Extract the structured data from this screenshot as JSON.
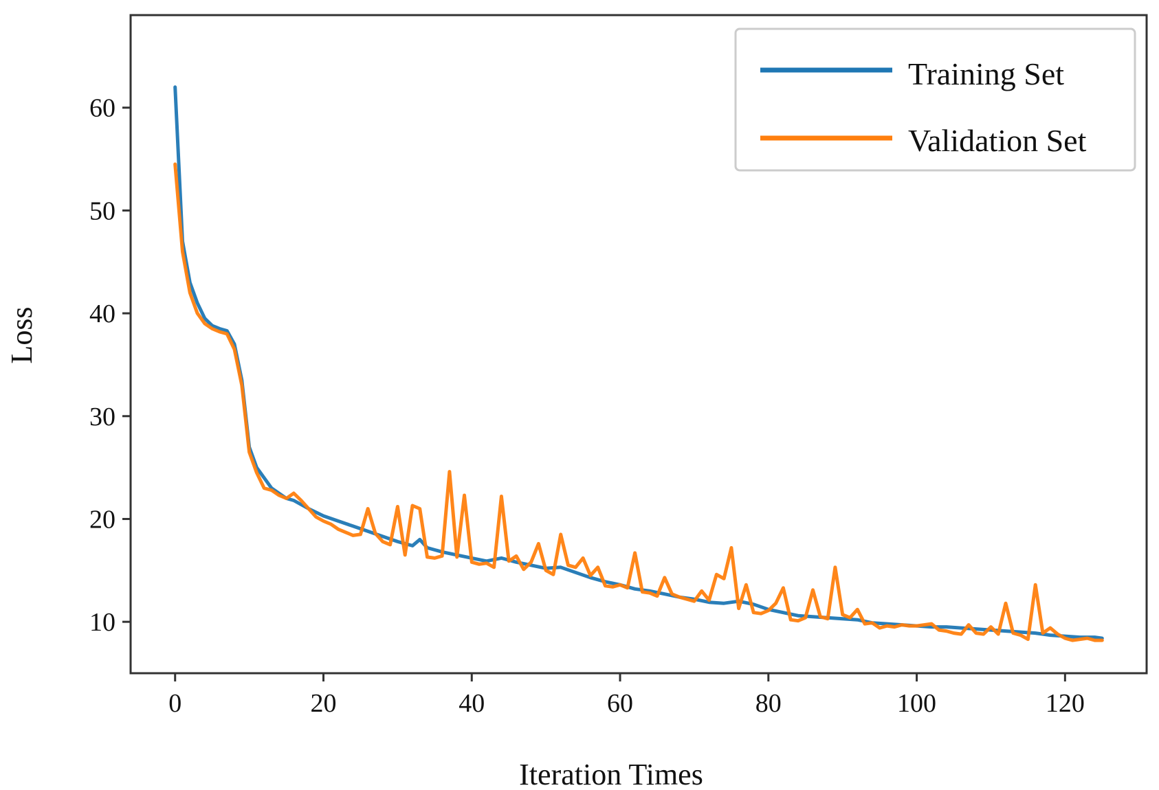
{
  "chart_data": {
    "type": "line",
    "title": "",
    "xlabel": "Iteration Times",
    "ylabel": "Loss",
    "xlim": [
      -6,
      131
    ],
    "ylim": [
      5,
      69
    ],
    "xticks": [
      0,
      20,
      40,
      60,
      80,
      100,
      120
    ],
    "yticks": [
      10,
      20,
      30,
      40,
      50,
      60
    ],
    "grid": false,
    "legend_position": "top-right",
    "series": [
      {
        "name": "Training Set",
        "color": "#1f77b4",
        "x": [
          0,
          1,
          2,
          3,
          4,
          5,
          6,
          7,
          8,
          9,
          10,
          11,
          12,
          13,
          14,
          15,
          16,
          18,
          20,
          22,
          24,
          26,
          28,
          30,
          32,
          33,
          34,
          36,
          38,
          40,
          42,
          44,
          46,
          48,
          50,
          52,
          54,
          56,
          58,
          60,
          62,
          64,
          66,
          68,
          70,
          72,
          74,
          76,
          78,
          80,
          82,
          84,
          86,
          88,
          90,
          92,
          94,
          96,
          98,
          100,
          102,
          104,
          106,
          108,
          110,
          112,
          114,
          116,
          118,
          120,
          122,
          124,
          125
        ],
        "values": [
          62,
          47,
          43,
          41,
          39.5,
          38.8,
          38.5,
          38.3,
          37,
          33.5,
          27,
          25,
          24,
          23,
          22.5,
          22,
          21.8,
          21,
          20.3,
          19.8,
          19.3,
          18.8,
          18.3,
          17.8,
          17.4,
          18,
          17.2,
          16.8,
          16.5,
          16.2,
          15.9,
          16.2,
          15.8,
          15.5,
          15.2,
          15.3,
          14.8,
          14.3,
          13.9,
          13.6,
          13.2,
          13,
          12.7,
          12.4,
          12.2,
          11.9,
          11.8,
          12,
          11.7,
          11.2,
          10.9,
          10.6,
          10.5,
          10.4,
          10.3,
          10.2,
          9.9,
          9.8,
          9.7,
          9.6,
          9.5,
          9.5,
          9.4,
          9.3,
          9.2,
          9.1,
          9,
          8.9,
          8.7,
          8.6,
          8.5,
          8.5,
          8.4
        ]
      },
      {
        "name": "Validation Set",
        "color": "#ff7f0e",
        "x": [
          0,
          1,
          2,
          3,
          4,
          5,
          6,
          7,
          8,
          9,
          10,
          11,
          12,
          13,
          14,
          15,
          16,
          17,
          18,
          19,
          20,
          21,
          22,
          23,
          24,
          25,
          26,
          27,
          28,
          29,
          30,
          31,
          32,
          33,
          34,
          35,
          36,
          37,
          38,
          39,
          40,
          41,
          42,
          43,
          44,
          45,
          46,
          47,
          48,
          49,
          50,
          51,
          52,
          53,
          54,
          55,
          56,
          57,
          58,
          59,
          60,
          61,
          62,
          63,
          64,
          65,
          66,
          67,
          68,
          69,
          70,
          71,
          72,
          73,
          74,
          75,
          76,
          77,
          78,
          79,
          80,
          81,
          82,
          83,
          84,
          85,
          86,
          87,
          88,
          89,
          90,
          91,
          92,
          93,
          94,
          95,
          96,
          97,
          98,
          99,
          100,
          101,
          102,
          103,
          104,
          105,
          106,
          107,
          108,
          109,
          110,
          111,
          112,
          113,
          114,
          115,
          116,
          117,
          118,
          119,
          120,
          121,
          122,
          123,
          124,
          125
        ],
        "values": [
          54.5,
          46,
          42,
          40,
          39,
          38.5,
          38.2,
          38,
          36.5,
          33,
          26.5,
          24.5,
          23,
          22.8,
          22.3,
          22,
          22.5,
          21.8,
          21,
          20.2,
          19.8,
          19.5,
          19,
          18.7,
          18.4,
          18.5,
          21,
          18.6,
          17.8,
          17.5,
          21.2,
          16.5,
          21.3,
          21,
          16.3,
          16.2,
          16.4,
          24.6,
          16.3,
          22.3,
          15.8,
          15.6,
          15.7,
          15.3,
          22.2,
          15.9,
          16.4,
          15.1,
          15.8,
          17.6,
          15,
          14.6,
          18.5,
          15.5,
          15.3,
          16.2,
          14.5,
          15.3,
          13.5,
          13.4,
          13.6,
          13.3,
          16.7,
          12.9,
          12.8,
          12.5,
          14.3,
          12.7,
          12.4,
          12.2,
          12,
          13,
          12.1,
          14.6,
          14.2,
          17.2,
          11.3,
          13.6,
          10.9,
          10.8,
          11.1,
          11.8,
          13.3,
          10.2,
          10.1,
          10.4,
          13.1,
          10.5,
          10.3,
          15.3,
          10.7,
          10.4,
          11.2,
          9.8,
          9.9,
          9.4,
          9.6,
          9.5,
          9.7,
          9.6,
          9.6,
          9.7,
          9.8,
          9.2,
          9.1,
          8.9,
          8.8,
          9.7,
          8.9,
          8.8,
          9.5,
          8.8,
          11.8,
          8.9,
          8.7,
          8.3,
          13.6,
          8.9,
          9.4,
          8.8,
          8.4,
          8.2,
          8.3,
          8.4,
          8.2,
          8.2
        ]
      }
    ]
  }
}
